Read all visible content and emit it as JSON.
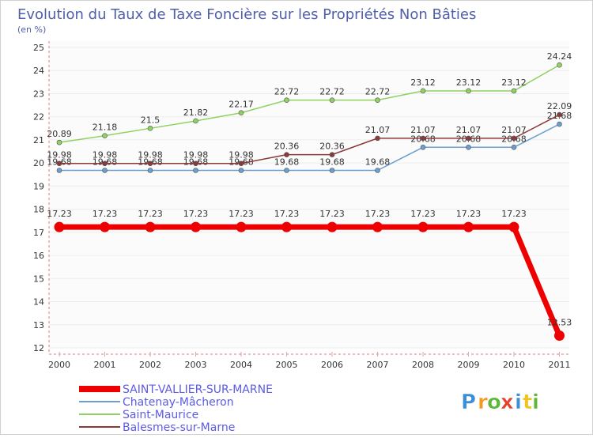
{
  "chart_data": {
    "type": "line",
    "title": "Evolution du Taux de Taxe Foncière sur les Propriétés Non Bâties",
    "ylabel": "(en %)",
    "xlabel": "",
    "ylim": [
      12,
      25
    ],
    "yticks": [
      "12",
      "13",
      "14",
      "15",
      "16",
      "17",
      "18",
      "19",
      "20",
      "21",
      "22",
      "23",
      "24",
      "25"
    ],
    "categories": [
      "2000",
      "2001",
      "2002",
      "2003",
      "2004",
      "2005",
      "2006",
      "2007",
      "2008",
      "2009",
      "2010",
      "2011"
    ],
    "series": [
      {
        "name": "Chatenay-Mâcheron",
        "color": "#6b9fd0",
        "values": [
          19.68,
          19.68,
          19.68,
          19.68,
          19.68,
          19.68,
          19.68,
          19.68,
          20.68,
          20.68,
          20.68,
          21.68
        ],
        "labels": [
          "19.68",
          "19.68",
          "19.68",
          "19.68",
          "19.68",
          "19.68",
          "19.68",
          "19.68",
          "20.68",
          "20.68",
          "20.68",
          "21.68"
        ]
      },
      {
        "name": "Saint-Maurice",
        "color": "#8fd162",
        "values": [
          20.89,
          21.18,
          21.5,
          21.82,
          22.17,
          22.72,
          22.72,
          22.72,
          23.12,
          23.12,
          23.12,
          24.24
        ],
        "labels": [
          "20.89",
          "21.18",
          "21.5",
          "21.82",
          "22.17",
          "22.72",
          "22.72",
          "22.72",
          "23.12",
          "23.12",
          "23.12",
          "24.24"
        ]
      },
      {
        "name": "Balesmes-sur-Marne",
        "color": "#8b3a3a",
        "values": [
          19.98,
          19.98,
          19.98,
          19.98,
          19.98,
          20.36,
          20.36,
          21.07,
          21.07,
          21.07,
          21.07,
          22.09
        ],
        "labels": [
          "19.98",
          "19.98",
          "19.98",
          "19.98",
          "19.98",
          "20.36",
          "20.36",
          "21.07",
          "21.07",
          "21.07",
          "21.07",
          "22.09"
        ]
      },
      {
        "name": "SAINT-VALLIER-SUR-MARNE",
        "color": "#ee0000",
        "values": [
          17.23,
          17.23,
          17.23,
          17.23,
          17.23,
          17.23,
          17.23,
          17.23,
          17.23,
          17.23,
          17.23,
          12.53
        ],
        "labels": [
          "17.23",
          "17.23",
          "17.23",
          "17.23",
          "17.23",
          "17.23",
          "17.23",
          "17.23",
          "17.23",
          "17.23",
          "17.23",
          "12.53"
        ]
      }
    ],
    "legend": [
      "SAINT-VALLIER-SUR-MARNE",
      "Chatenay-Mâcheron",
      "Saint-Maurice",
      "Balesmes-sur-Marne"
    ]
  },
  "brand": {
    "letters": [
      "P",
      "r",
      "o",
      "x",
      "i",
      "t",
      "i"
    ],
    "colors": [
      "#3b8fd9",
      "#f29b1d",
      "#5cb833",
      "#e8402a",
      "#3b8fd9",
      "#f2c21d",
      "#5cb833"
    ]
  },
  "colors": {
    "title": "#4f5fa8",
    "legend_text": "#5b5be8",
    "axis": "#e8a6a6",
    "frame": "#d0d0d0",
    "grid": "#ececec"
  }
}
